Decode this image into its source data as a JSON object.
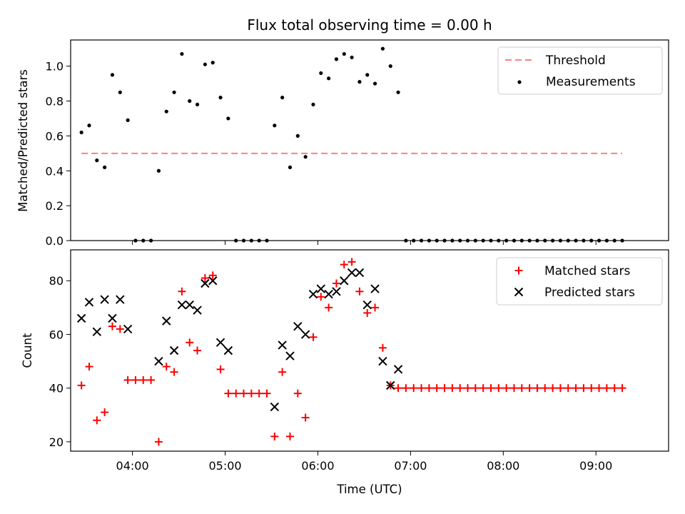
{
  "colors": {
    "threshold": "#ff7f7f",
    "measurement": "#000000",
    "matched": "#ff0000",
    "predicted": "#000000"
  },
  "chart_data": [
    {
      "type": "scatter",
      "title": "Flux total observing time = 0.00 h",
      "xlabel": "",
      "ylabel": "Matched/Predicted stars",
      "ylim": [
        0,
        1.15
      ],
      "xlim": [
        "03:20",
        "09:47"
      ],
      "yticks": [
        "0.0",
        "0.2",
        "0.4",
        "0.6",
        "0.8",
        "1.0"
      ],
      "legend_position": "top-right",
      "threshold": {
        "name": "Threshold",
        "value": 0.5,
        "x_start": "03:27",
        "x_end": "09:17"
      },
      "measurements": {
        "name": "Measurements",
        "points": [
          [
            "03:27",
            0.62
          ],
          [
            "03:32",
            0.66
          ],
          [
            "03:37",
            0.46
          ],
          [
            "03:42",
            0.42
          ],
          [
            "03:47",
            0.95
          ],
          [
            "03:52",
            0.85
          ],
          [
            "03:57",
            0.69
          ],
          [
            "04:02",
            0.0
          ],
          [
            "04:07",
            0.0
          ],
          [
            "04:12",
            0.0
          ],
          [
            "04:17",
            0.4
          ],
          [
            "04:22",
            0.74
          ],
          [
            "04:27",
            0.85
          ],
          [
            "04:32",
            1.07
          ],
          [
            "04:37",
            0.8
          ],
          [
            "04:42",
            0.78
          ],
          [
            "04:47",
            1.01
          ],
          [
            "04:52",
            1.02
          ],
          [
            "04:57",
            0.82
          ],
          [
            "05:02",
            0.7
          ],
          [
            "05:07",
            0.0
          ],
          [
            "05:12",
            0.0
          ],
          [
            "05:17",
            0.0
          ],
          [
            "05:22",
            0.0
          ],
          [
            "05:27",
            0.0
          ],
          [
            "05:32",
            0.66
          ],
          [
            "05:37",
            0.82
          ],
          [
            "05:42",
            0.42
          ],
          [
            "05:47",
            0.6
          ],
          [
            "05:52",
            0.48
          ],
          [
            "05:57",
            0.78
          ],
          [
            "06:02",
            0.96
          ],
          [
            "06:07",
            0.93
          ],
          [
            "06:12",
            1.04
          ],
          [
            "06:17",
            1.07
          ],
          [
            "06:22",
            1.05
          ],
          [
            "06:27",
            0.91
          ],
          [
            "06:32",
            0.95
          ],
          [
            "06:37",
            0.9
          ],
          [
            "06:42",
            1.1
          ],
          [
            "06:47",
            1.0
          ],
          [
            "06:52",
            0.85
          ],
          [
            "06:57",
            0.0
          ],
          [
            "07:02",
            0.0
          ],
          [
            "07:07",
            0.0
          ],
          [
            "07:12",
            0.0
          ],
          [
            "07:17",
            0.0
          ],
          [
            "07:22",
            0.0
          ],
          [
            "07:27",
            0.0
          ],
          [
            "07:32",
            0.0
          ],
          [
            "07:37",
            0.0
          ],
          [
            "07:42",
            0.0
          ],
          [
            "07:47",
            0.0
          ],
          [
            "07:52",
            0.0
          ],
          [
            "07:57",
            0.0
          ],
          [
            "08:02",
            0.0
          ],
          [
            "08:07",
            0.0
          ],
          [
            "08:12",
            0.0
          ],
          [
            "08:17",
            0.0
          ],
          [
            "08:22",
            0.0
          ],
          [
            "08:27",
            0.0
          ],
          [
            "08:32",
            0.0
          ],
          [
            "08:37",
            0.0
          ],
          [
            "08:42",
            0.0
          ],
          [
            "08:47",
            0.0
          ],
          [
            "08:52",
            0.0
          ],
          [
            "08:57",
            0.0
          ],
          [
            "09:02",
            0.0
          ],
          [
            "09:07",
            0.0
          ],
          [
            "09:12",
            0.0
          ],
          [
            "09:17",
            0.0
          ]
        ]
      }
    },
    {
      "type": "scatter",
      "title": "",
      "xlabel": "Time (UTC)",
      "ylabel": "Count",
      "ylim": [
        16.5,
        91.5
      ],
      "xlim": [
        "03:20",
        "09:47"
      ],
      "xticks": [
        "04:00",
        "05:00",
        "06:00",
        "07:00",
        "08:00",
        "09:00"
      ],
      "yticks": [
        "20",
        "40",
        "60",
        "80"
      ],
      "legend_position": "top-right",
      "matched": {
        "name": "Matched stars",
        "points": [
          [
            "03:27",
            41
          ],
          [
            "03:32",
            48
          ],
          [
            "03:37",
            28
          ],
          [
            "03:42",
            31
          ],
          [
            "03:47",
            63
          ],
          [
            "03:52",
            62
          ],
          [
            "03:57",
            43
          ],
          [
            "04:02",
            43
          ],
          [
            "04:07",
            43
          ],
          [
            "04:12",
            43
          ],
          [
            "04:17",
            20
          ],
          [
            "04:22",
            48
          ],
          [
            "04:27",
            46
          ],
          [
            "04:32",
            76
          ],
          [
            "04:37",
            57
          ],
          [
            "04:42",
            54
          ],
          [
            "04:47",
            81
          ],
          [
            "04:52",
            82
          ],
          [
            "04:57",
            47
          ],
          [
            "05:02",
            38
          ],
          [
            "05:07",
            38
          ],
          [
            "05:12",
            38
          ],
          [
            "05:17",
            38
          ],
          [
            "05:22",
            38
          ],
          [
            "05:27",
            38
          ],
          [
            "05:32",
            22
          ],
          [
            "05:37",
            46
          ],
          [
            "05:42",
            22
          ],
          [
            "05:47",
            38
          ],
          [
            "05:52",
            29
          ],
          [
            "05:57",
            59
          ],
          [
            "06:02",
            74
          ],
          [
            "06:07",
            70
          ],
          [
            "06:12",
            79
          ],
          [
            "06:17",
            86
          ],
          [
            "06:22",
            87
          ],
          [
            "06:27",
            76
          ],
          [
            "06:32",
            68
          ],
          [
            "06:37",
            70
          ],
          [
            "06:42",
            55
          ],
          [
            "06:47",
            41
          ],
          [
            "06:52",
            40
          ],
          [
            "06:57",
            40
          ],
          [
            "07:02",
            40
          ],
          [
            "07:07",
            40
          ],
          [
            "07:12",
            40
          ],
          [
            "07:17",
            40
          ],
          [
            "07:22",
            40
          ],
          [
            "07:27",
            40
          ],
          [
            "07:32",
            40
          ],
          [
            "07:37",
            40
          ],
          [
            "07:42",
            40
          ],
          [
            "07:47",
            40
          ],
          [
            "07:52",
            40
          ],
          [
            "07:57",
            40
          ],
          [
            "08:02",
            40
          ],
          [
            "08:07",
            40
          ],
          [
            "08:12",
            40
          ],
          [
            "08:17",
            40
          ],
          [
            "08:22",
            40
          ],
          [
            "08:27",
            40
          ],
          [
            "08:32",
            40
          ],
          [
            "08:37",
            40
          ],
          [
            "08:42",
            40
          ],
          [
            "08:47",
            40
          ],
          [
            "08:52",
            40
          ],
          [
            "08:57",
            40
          ],
          [
            "09:02",
            40
          ],
          [
            "09:07",
            40
          ],
          [
            "09:12",
            40
          ],
          [
            "09:17",
            40
          ]
        ]
      },
      "predicted": {
        "name": "Predicted stars",
        "points": [
          [
            "03:27",
            66
          ],
          [
            "03:32",
            72
          ],
          [
            "03:37",
            61
          ],
          [
            "03:42",
            73
          ],
          [
            "03:47",
            66
          ],
          [
            "03:52",
            73
          ],
          [
            "03:57",
            62
          ],
          [
            "04:17",
            50
          ],
          [
            "04:22",
            65
          ],
          [
            "04:27",
            54
          ],
          [
            "04:32",
            71
          ],
          [
            "04:37",
            71
          ],
          [
            "04:42",
            69
          ],
          [
            "04:47",
            79
          ],
          [
            "04:52",
            80
          ],
          [
            "04:57",
            57
          ],
          [
            "05:02",
            54
          ],
          [
            "05:32",
            33
          ],
          [
            "05:37",
            56
          ],
          [
            "05:42",
            52
          ],
          [
            "05:47",
            63
          ],
          [
            "05:52",
            60
          ],
          [
            "05:57",
            75
          ],
          [
            "06:02",
            77
          ],
          [
            "06:07",
            75
          ],
          [
            "06:12",
            76
          ],
          [
            "06:17",
            80
          ],
          [
            "06:22",
            83
          ],
          [
            "06:27",
            83
          ],
          [
            "06:32",
            71
          ],
          [
            "06:37",
            77
          ],
          [
            "06:42",
            50
          ],
          [
            "06:47",
            41
          ],
          [
            "06:52",
            47
          ]
        ]
      }
    }
  ]
}
